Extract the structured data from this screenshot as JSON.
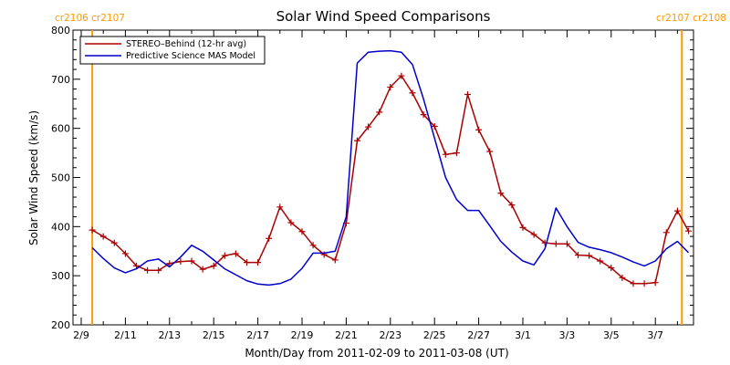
{
  "chart_data": {
    "type": "line",
    "title": "Solar Wind Speed Comparisons",
    "xlabel": "Month/Day from 2011-02-09 to 2011-03-08 (UT)",
    "ylabel": "Solar Wind Speed (km/s)",
    "ylim": [
      200,
      800
    ],
    "xlim": [
      0,
      27.7
    ],
    "grid": false,
    "legend_placement": "top-left",
    "x_tick_labels": [
      "2/9",
      "2/11",
      "2/13",
      "2/15",
      "2/17",
      "2/19",
      "2/21",
      "2/23",
      "2/25",
      "2/27",
      "3/1",
      "3/3",
      "3/5",
      "3/7"
    ],
    "x_tick_values": [
      0,
      2,
      4,
      6,
      8,
      10,
      12,
      14,
      16,
      18,
      20,
      22,
      24,
      26
    ],
    "y_tick_values": [
      200,
      300,
      400,
      500,
      600,
      700,
      800
    ],
    "carrington": [
      {
        "label": "cr2106 cr2107",
        "x": 0.5,
        "align": "left"
      },
      {
        "label": "cr2107 cr2108",
        "x": 27.2,
        "align": "right"
      }
    ],
    "carrington_color": "#ff9900",
    "series": [
      {
        "name": "STEREO–Behind (12-hr avg)",
        "color": "#aa0000",
        "markers": true,
        "x": [
          0.5,
          1.0,
          1.5,
          2.0,
          2.5,
          3.0,
          3.5,
          4.0,
          4.5,
          5.0,
          5.5,
          6.0,
          6.5,
          7.0,
          7.5,
          8.0,
          8.5,
          9.0,
          9.5,
          10.0,
          10.5,
          11.0,
          11.5,
          12.0,
          12.5,
          13.0,
          13.5,
          14.0,
          14.5,
          15.0,
          15.5,
          16.0,
          16.5,
          17.0,
          17.5,
          18.0,
          18.5,
          19.0,
          19.5,
          20.0,
          20.5,
          21.0,
          21.5,
          22.0,
          22.5,
          23.0,
          23.5,
          24.0,
          24.5,
          25.0,
          25.5,
          26.0,
          26.5,
          27.0,
          27.5
        ],
        "values": [
          393,
          380,
          367,
          345,
          320,
          311,
          311,
          325,
          329,
          330,
          313,
          320,
          341,
          345,
          327,
          327,
          376,
          440,
          408,
          390,
          362,
          343,
          332,
          407,
          575,
          603,
          633,
          684,
          707,
          672,
          628,
          604,
          547,
          550,
          669,
          597,
          553,
          468,
          444,
          398,
          384,
          367,
          365,
          365,
          342,
          341,
          330,
          316,
          296,
          284,
          284,
          286,
          388,
          432,
          391
        ]
      },
      {
        "name": "Predictive Science MAS Model",
        "color": "#0000cc",
        "markers": false,
        "x": [
          0.5,
          1.0,
          1.5,
          2.0,
          2.5,
          3.0,
          3.5,
          4.0,
          4.5,
          5.0,
          5.5,
          6.0,
          6.5,
          7.0,
          7.5,
          8.0,
          8.5,
          9.0,
          9.5,
          10.0,
          10.5,
          11.0,
          11.5,
          12.0,
          12.5,
          13.0,
          13.5,
          14.0,
          14.5,
          15.0,
          15.5,
          16.0,
          16.5,
          17.0,
          17.5,
          18.0,
          18.5,
          19.0,
          19.5,
          20.0,
          20.5,
          21.0,
          21.5,
          22.0,
          22.5,
          23.0,
          23.5,
          24.0,
          24.5,
          25.0,
          25.5,
          26.0,
          26.5,
          27.0,
          27.5
        ],
        "values": [
          357,
          335,
          316,
          306,
          314,
          330,
          334,
          318,
          338,
          362,
          350,
          332,
          314,
          302,
          290,
          283,
          281,
          284,
          293,
          315,
          346,
          346,
          350,
          420,
          733,
          755,
          757,
          758,
          755,
          730,
          660,
          580,
          500,
          455,
          433,
          433,
          402,
          370,
          348,
          330,
          322,
          355,
          438,
          400,
          368,
          358,
          353,
          347,
          338,
          328,
          320,
          330,
          355,
          370,
          347
        ]
      }
    ]
  }
}
